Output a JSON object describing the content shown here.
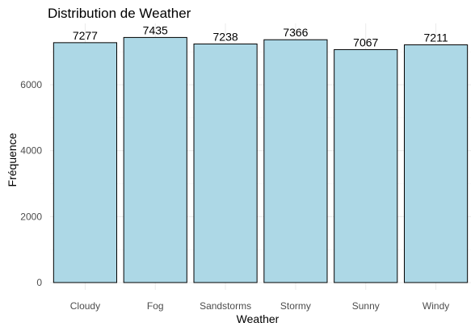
{
  "chart_data": {
    "type": "bar",
    "title": "Distribution de Weather",
    "xlabel": "Weather",
    "ylabel": "Fréquence",
    "categories": [
      "Cloudy",
      "Fog",
      "Sandstorms",
      "Stormy",
      "Sunny",
      "Windy"
    ],
    "values": [
      7277,
      7435,
      7238,
      7366,
      7067,
      7211
    ],
    "data_labels": [
      "7277",
      "7435",
      "7238",
      "7366",
      "7067",
      "7211"
    ],
    "yticks": [
      0,
      2000,
      4000,
      6000
    ],
    "ylim": [
      0,
      7435
    ],
    "grid": true,
    "legend": "none",
    "colors": {
      "bar_fill": "#add8e6",
      "bar_stroke": "#000000",
      "grid_major": "#ebebeb",
      "grid_minor": "#f5f5f5"
    }
  }
}
